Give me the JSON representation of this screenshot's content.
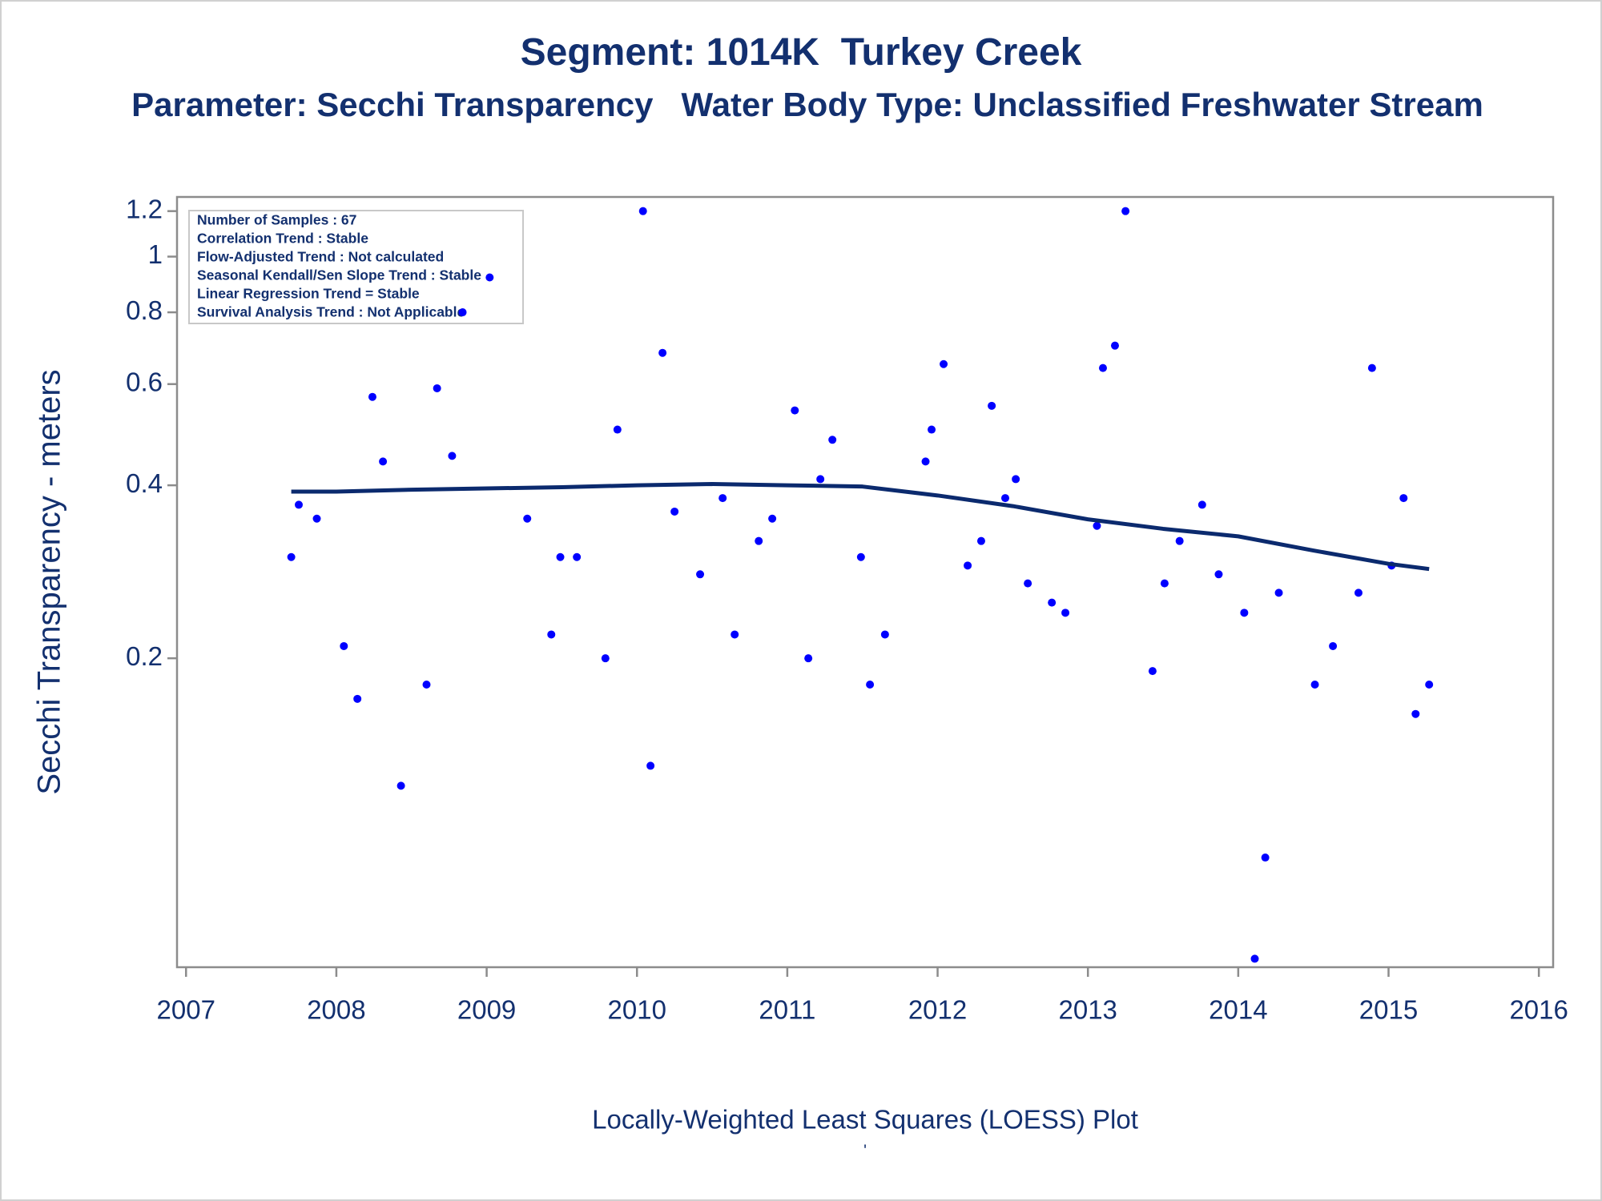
{
  "chart_data": {
    "type": "scatter",
    "title": "Segment: 1014K  Turkey Creek",
    "subtitle": "Parameter: Secchi Transparency   Water Body Type: Unclassified Freshwater Stream",
    "y_label": "Secchi Transparency - meters",
    "footer": "Locally-Weighted Least Squares (LOESS) Plot",
    "footnote": "'",
    "annotations": [
      "Number of Samples : 67",
      "Correlation Trend : Stable",
      "Flow-Adjusted Trend : Not calculated",
      "Seasonal Kendall/Sen Slope Trend : Stable",
      "Linear Regression Trend = Stable",
      "Survival Analysis Trend : Not Applicable"
    ],
    "x": [
      2007.7,
      2007.75,
      2007.87,
      2008.05,
      2008.14,
      2008.24,
      2008.31,
      2008.43,
      2008.6,
      2008.67,
      2008.77,
      2008.84,
      2009.02,
      2009.27,
      2009.43,
      2009.49,
      2009.6,
      2009.79,
      2009.87,
      2010.04,
      2010.09,
      2010.17,
      2010.25,
      2010.42,
      2010.57,
      2010.65,
      2010.81,
      2010.9,
      2011.05,
      2011.14,
      2011.22,
      2011.3,
      2011.49,
      2011.55,
      2011.65,
      2011.92,
      2011.96,
      2012.04,
      2012.2,
      2012.29,
      2012.36,
      2012.45,
      2012.52,
      2012.6,
      2012.76,
      2012.85,
      2013.06,
      2013.1,
      2013.18,
      2013.25,
      2013.43,
      2013.51,
      2013.61,
      2013.76,
      2013.87,
      2014.04,
      2014.11,
      2014.18,
      2014.27,
      2014.51,
      2014.63,
      2014.8,
      2014.89,
      2015.02,
      2015.1,
      2015.18,
      2015.27
    ],
    "values": [
      0.3,
      0.37,
      0.35,
      0.21,
      0.17,
      0.57,
      0.44,
      0.12,
      0.18,
      0.59,
      0.45,
      0.8,
      0.92,
      0.35,
      0.22,
      0.3,
      0.3,
      0.2,
      0.5,
      1.2,
      0.13,
      0.68,
      0.36,
      0.28,
      0.38,
      0.22,
      0.32,
      0.35,
      0.54,
      0.2,
      0.41,
      0.48,
      0.3,
      0.18,
      0.22,
      0.44,
      0.5,
      0.65,
      0.29,
      0.32,
      0.55,
      0.38,
      0.41,
      0.27,
      0.25,
      0.24,
      0.34,
      0.64,
      0.7,
      1.2,
      0.19,
      0.27,
      0.32,
      0.37,
      0.28,
      0.24,
      0.06,
      0.09,
      0.26,
      0.18,
      0.21,
      0.26,
      0.64,
      0.29,
      0.38,
      0.16,
      0.18
    ],
    "color": "#0000ff",
    "loess": {
      "x": [
        2007.7,
        2008,
        2008.5,
        2009,
        2009.5,
        2010,
        2010.5,
        2011,
        2011.5,
        2012,
        2012.5,
        2013,
        2013.5,
        2014,
        2014.5,
        2015,
        2015.27
      ],
      "values": [
        0.39,
        0.39,
        0.393,
        0.395,
        0.397,
        0.4,
        0.402,
        0.4,
        0.398,
        0.384,
        0.368,
        0.349,
        0.336,
        0.326,
        0.308,
        0.292,
        0.286
      ],
      "color": "#0b2a6e"
    },
    "yscale": "log",
    "xlim": [
      2006.94,
      2016.095
    ],
    "ylim": [
      0.058,
      1.27
    ],
    "xticks": [
      2007,
      2008,
      2009,
      2010,
      2011,
      2012,
      2013,
      2014,
      2015,
      2016
    ],
    "yticks": [
      0.2,
      0.4,
      0.6,
      0.8,
      1,
      1.2
    ],
    "grid": false
  }
}
